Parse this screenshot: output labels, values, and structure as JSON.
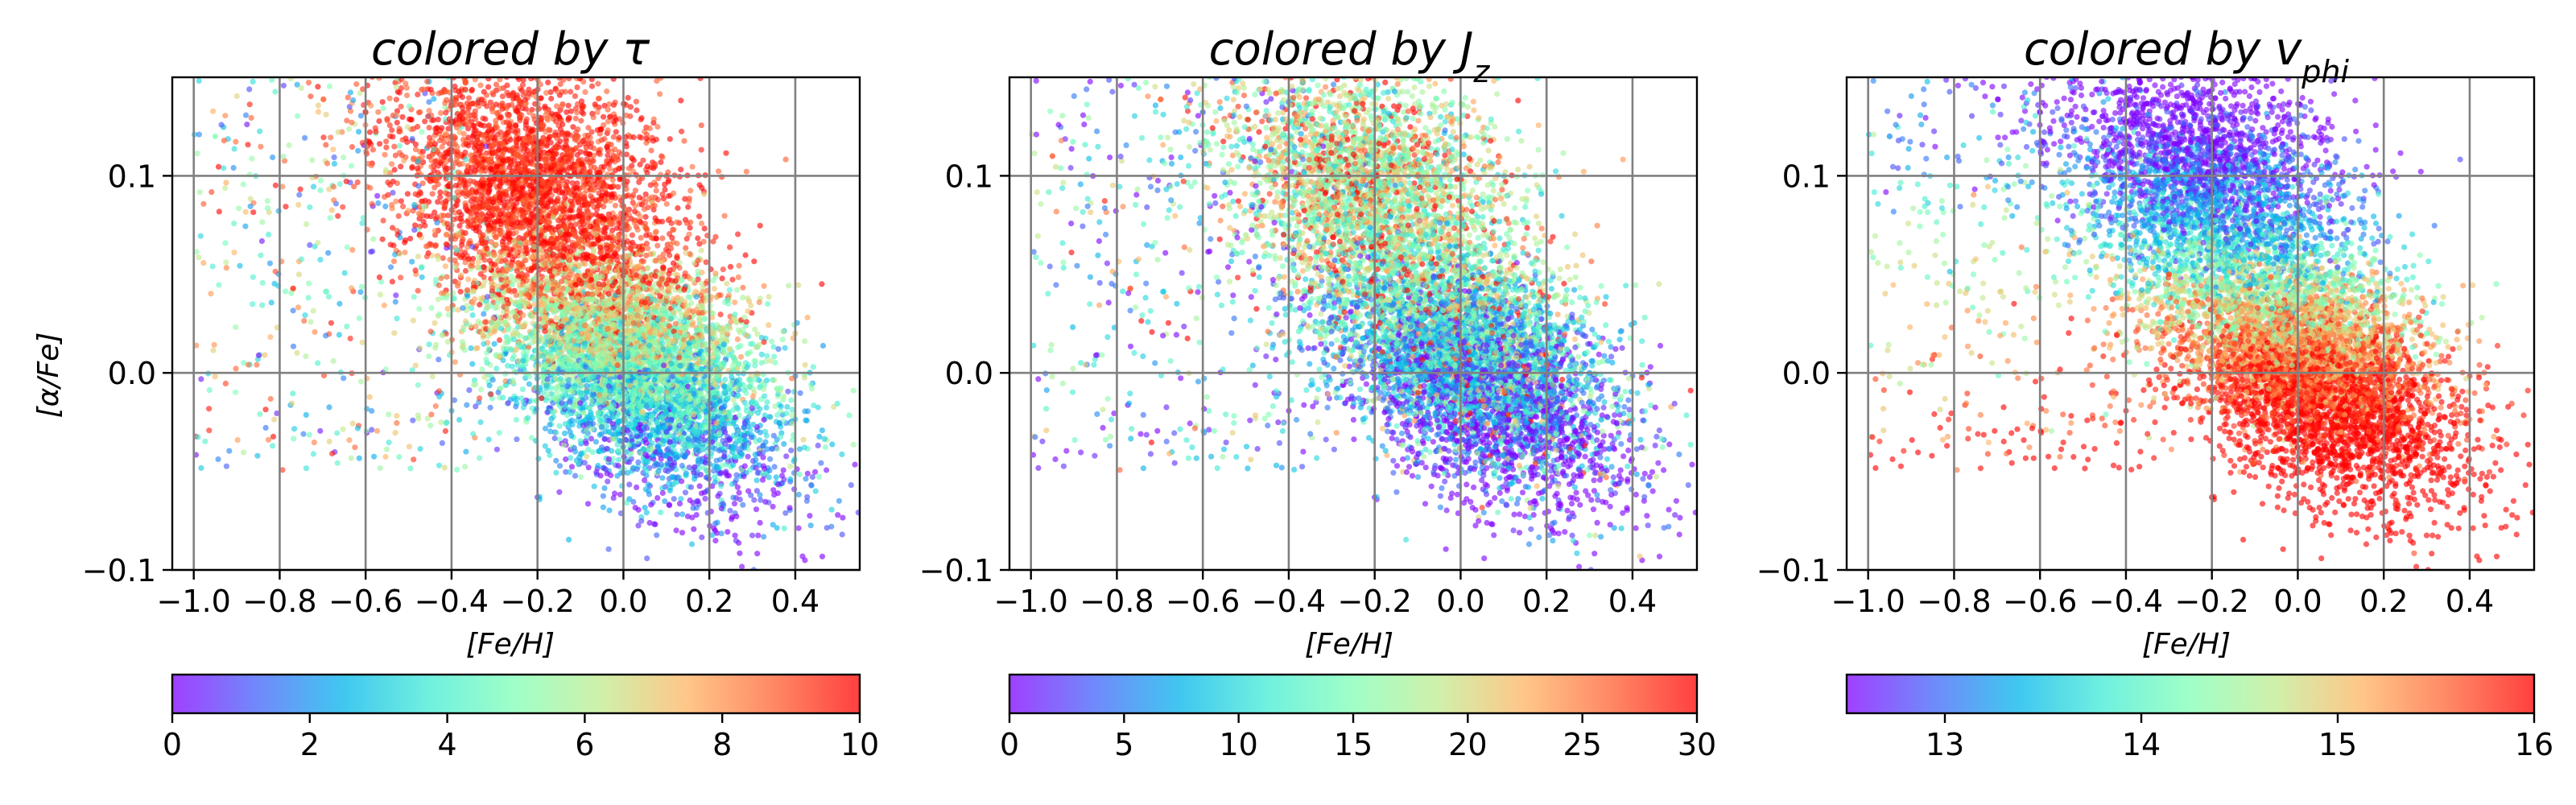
{
  "chart_data": [
    {
      "type": "scatter",
      "title": "colored by τ",
      "title_parts": {
        "pre": "colored by ",
        "sym": "τ",
        "sub": ""
      },
      "xlabel": "[Fe/H]",
      "ylabel": "[α/Fe]",
      "xlim": [
        -1.05,
        0.55
      ],
      "ylim": [
        -0.1,
        0.15
      ],
      "x_ticks": [
        -1.0,
        -0.8,
        -0.6,
        -0.4,
        -0.2,
        0.0,
        0.2,
        0.4
      ],
      "x_tick_labels": [
        "−1.0",
        "−0.8",
        "−0.6",
        "−0.4",
        "−0.2",
        "0.0",
        "0.2",
        "0.4"
      ],
      "y_ticks": [
        -0.1,
        0.0,
        0.1
      ],
      "y_tick_labels": [
        "−0.1",
        "0.0",
        "0.1"
      ],
      "grid": true,
      "colormap": "rainbow",
      "colorbar": {
        "range": [
          0,
          10
        ],
        "ticks": [
          0,
          2,
          4,
          6,
          8,
          10
        ],
        "tick_labels": [
          "0",
          "2",
          "4",
          "6",
          "8",
          "10"
        ],
        "orientation": "horizontal",
        "placement": "bottom"
      },
      "color_scheme": "age",
      "sample_points": [
        {
          "x": -0.35,
          "y": 0.12,
          "c": 10
        },
        {
          "x": -0.15,
          "y": 0.13,
          "c": 10
        },
        {
          "x": -0.05,
          "y": 0.09,
          "c": 10
        },
        {
          "x": -0.3,
          "y": 0.06,
          "c": 8
        },
        {
          "x": -0.1,
          "y": 0.03,
          "c": 6
        },
        {
          "x": 0.0,
          "y": 0.0,
          "c": 3
        },
        {
          "x": 0.1,
          "y": -0.03,
          "c": 1
        },
        {
          "x": 0.25,
          "y": 0.0,
          "c": 4
        },
        {
          "x": 0.4,
          "y": 0.02,
          "c": 7
        },
        {
          "x": -0.95,
          "y": 0.12,
          "c": 5
        }
      ]
    },
    {
      "type": "scatter",
      "title": "colored by Jz",
      "title_parts": {
        "pre": "colored by ",
        "sym": "J",
        "sub": "z"
      },
      "xlabel": "[Fe/H]",
      "ylabel": "",
      "xlim": [
        -1.05,
        0.55
      ],
      "ylim": [
        -0.1,
        0.15
      ],
      "x_ticks": [
        -1.0,
        -0.8,
        -0.6,
        -0.4,
        -0.2,
        0.0,
        0.2,
        0.4
      ],
      "x_tick_labels": [
        "−1.0",
        "−0.8",
        "−0.6",
        "−0.4",
        "−0.2",
        "0.0",
        "0.2",
        "0.4"
      ],
      "y_ticks": [
        -0.1,
        0.0,
        0.1
      ],
      "y_tick_labels": [
        "−0.1",
        "0.0",
        "0.1"
      ],
      "grid": true,
      "colormap": "rainbow",
      "colorbar": {
        "range": [
          0,
          30
        ],
        "ticks": [
          0,
          5,
          10,
          15,
          20,
          25,
          30
        ],
        "tick_labels": [
          "0",
          "5",
          "10",
          "15",
          "20",
          "25",
          "30"
        ],
        "orientation": "horizontal",
        "placement": "bottom"
      },
      "color_scheme": "jz",
      "sample_points": [
        {
          "x": -0.3,
          "y": 0.12,
          "c": 28
        },
        {
          "x": -0.1,
          "y": 0.1,
          "c": 26
        },
        {
          "x": -0.2,
          "y": 0.05,
          "c": 10
        },
        {
          "x": 0.0,
          "y": 0.0,
          "c": 4
        },
        {
          "x": 0.1,
          "y": -0.03,
          "c": 2
        },
        {
          "x": 0.3,
          "y": 0.0,
          "c": 6
        },
        {
          "x": -0.5,
          "y": 0.07,
          "c": 18
        },
        {
          "x": -0.95,
          "y": 0.11,
          "c": 27
        }
      ]
    },
    {
      "type": "scatter",
      "title": "colored by vphi",
      "title_parts": {
        "pre": "colored by ",
        "sym": "v",
        "sub": "phi"
      },
      "xlabel": "[Fe/H]",
      "ylabel": "",
      "xlim": [
        -1.05,
        0.55
      ],
      "ylim": [
        -0.1,
        0.15
      ],
      "x_ticks": [
        -1.0,
        -0.8,
        -0.6,
        -0.4,
        -0.2,
        0.0,
        0.2,
        0.4
      ],
      "x_tick_labels": [
        "−1.0",
        "−0.8",
        "−0.6",
        "−0.4",
        "−0.2",
        "0.0",
        "0.2",
        "0.4"
      ],
      "y_ticks": [
        -0.1,
        0.0,
        0.1
      ],
      "y_tick_labels": [
        "−0.1",
        "0.0",
        "0.1"
      ],
      "grid": true,
      "colormap": "rainbow",
      "colorbar": {
        "range": [
          12.5,
          16
        ],
        "ticks": [
          13,
          14,
          15,
          16
        ],
        "tick_labels": [
          "13",
          "14",
          "15",
          "16"
        ],
        "orientation": "horizontal",
        "placement": "bottom"
      },
      "color_scheme": "vphi",
      "sample_points": [
        {
          "x": -0.2,
          "y": 0.13,
          "c": 13
        },
        {
          "x": 0.0,
          "y": 0.1,
          "c": 13.5
        },
        {
          "x": -0.3,
          "y": 0.05,
          "c": 15.8
        },
        {
          "x": 0.0,
          "y": 0.0,
          "c": 15.5
        },
        {
          "x": 0.1,
          "y": -0.03,
          "c": 15.2
        },
        {
          "x": 0.3,
          "y": 0.02,
          "c": 14.2
        },
        {
          "x": -0.95,
          "y": 0.12,
          "c": 13.2
        }
      ]
    }
  ]
}
